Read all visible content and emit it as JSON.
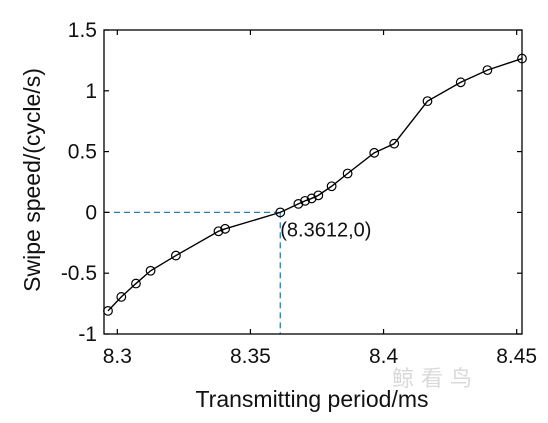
{
  "chart_data": {
    "type": "line",
    "title": "",
    "xlabel": "Transmitting period/ms",
    "ylabel": "Swipe speed/(cycle/s)",
    "xlim": [
      8.295,
      8.452
    ],
    "ylim": [
      -1,
      1.5
    ],
    "xticks": [
      8.3,
      8.35,
      8.4,
      8.45
    ],
    "xtick_labels": [
      "8.3",
      "8.35",
      "8.4",
      "8.45"
    ],
    "yticks": [
      -1,
      -0.5,
      0,
      0.5,
      1,
      1.5
    ],
    "ytick_labels": [
      "-1",
      "-0.5",
      "0",
      "0.5",
      "1",
      "1.5"
    ],
    "grid": false,
    "marker": "circle",
    "line_color": "#000000",
    "series": [
      {
        "x": [
          8.2965,
          8.3015,
          8.307,
          8.3125,
          8.322,
          8.338,
          8.3405,
          8.3612,
          8.368,
          8.3705,
          8.373,
          8.3755,
          8.3805,
          8.3865,
          8.3965,
          8.404,
          8.4165,
          8.429,
          8.439,
          8.452
        ],
        "y": [
          -0.81,
          -0.695,
          -0.585,
          -0.48,
          -0.355,
          -0.155,
          -0.135,
          0,
          0.07,
          0.095,
          0.115,
          0.14,
          0.215,
          0.32,
          0.49,
          0.565,
          0.915,
          1.07,
          1.17,
          1.265
        ]
      }
    ],
    "annotation": {
      "text": "(8.3612,0)",
      "x": 8.3612,
      "y": 0,
      "guide_color": "#2e7fa8"
    }
  },
  "watermark": "鲸 看 鸟"
}
